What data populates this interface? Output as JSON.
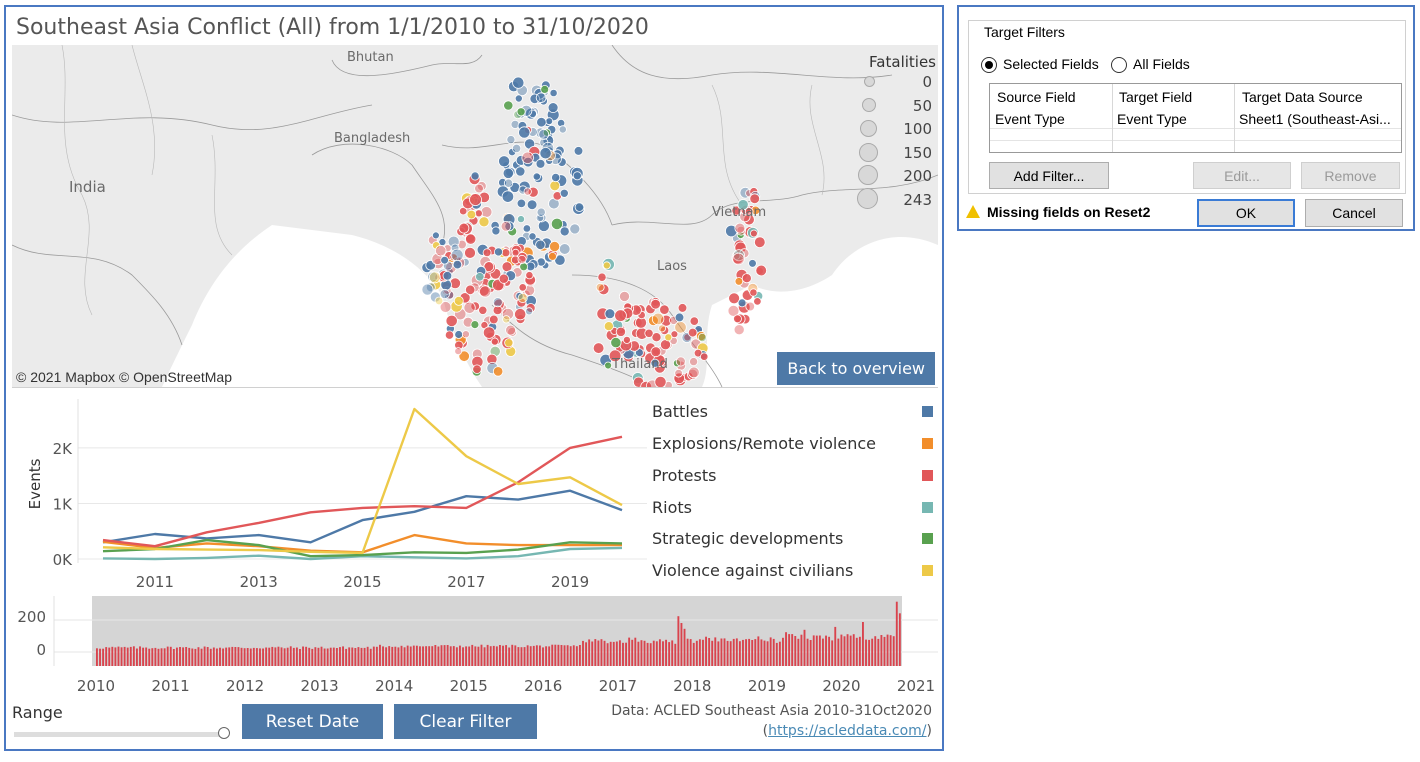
{
  "dashboard": {
    "title": "Southeast Asia Conflict (All) from 1/1/2010 to 31/10/2020",
    "map": {
      "labels": {
        "bhutan": "Bhutan",
        "bangladesh": "Bangladesh",
        "india": "India",
        "vietnam": "Vietnam",
        "laos": "Laos",
        "thailand": "Thailand"
      },
      "attribution": "© 2021 Mapbox © OpenStreetMap",
      "back_button": "Back to overview",
      "fatalities_legend": {
        "title": "Fatalities",
        "values": [
          "0",
          "50",
          "100",
          "150",
          "200",
          "243"
        ]
      }
    },
    "legend": {
      "items": [
        {
          "label": "Battles",
          "color": "#4e79a7"
        },
        {
          "label": "Explosions/Remote violence",
          "color": "#f28e2b"
        },
        {
          "label": "Protests",
          "color": "#e15759"
        },
        {
          "label": "Riots",
          "color": "#76b7b2"
        },
        {
          "label": "Strategic developments",
          "color": "#59a14f"
        },
        {
          "label": "Violence against civilians",
          "color": "#edc948"
        }
      ]
    },
    "controls": {
      "range_label": "Range",
      "reset_date": "Reset Date",
      "clear_filter": "Clear Filter"
    },
    "source": {
      "text": "Data: ACLED Southeast Asia 2010-31Oct2020",
      "open": "(",
      "link": "https://acleddata.com/",
      "close": ")"
    }
  },
  "chart_data": [
    {
      "type": "line",
      "ylabel": "Events",
      "x": [
        2010,
        2011,
        2012,
        2013,
        2014,
        2015,
        2016,
        2017,
        2018,
        2019,
        2020
      ],
      "x_ticks": [
        "2011",
        "2013",
        "2015",
        "2017",
        "2019"
      ],
      "y_ticks": [
        "0K",
        "1K",
        "2K"
      ],
      "ylim": [
        0,
        2700
      ],
      "series": [
        {
          "name": "Battles",
          "color": "#4e79a7",
          "values": [
            300,
            450,
            370,
            430,
            300,
            700,
            850,
            1130,
            1070,
            1230,
            880
          ]
        },
        {
          "name": "Explosions/Remote violence",
          "color": "#f28e2b",
          "values": [
            310,
            200,
            280,
            230,
            150,
            120,
            430,
            280,
            250,
            250,
            250
          ]
        },
        {
          "name": "Protests",
          "color": "#e15759",
          "values": [
            340,
            230,
            480,
            650,
            840,
            920,
            950,
            920,
            1380,
            2000,
            2200
          ]
        },
        {
          "name": "Riots",
          "color": "#76b7b2",
          "values": [
            10,
            0,
            20,
            60,
            0,
            50,
            30,
            10,
            50,
            180,
            200
          ]
        },
        {
          "name": "Strategic developments",
          "color": "#59a14f",
          "values": [
            140,
            180,
            340,
            250,
            50,
            70,
            120,
            110,
            170,
            300,
            280
          ]
        },
        {
          "name": "Violence against civilians",
          "color": "#edc948",
          "values": [
            210,
            180,
            170,
            160,
            130,
            110,
            2700,
            1850,
            1350,
            1470,
            970
          ]
        }
      ]
    },
    {
      "type": "bar",
      "x_ticks": [
        "2010",
        "2011",
        "2012",
        "2013",
        "2014",
        "2015",
        "2016",
        "2017",
        "2018",
        "2019",
        "2020",
        "2021"
      ],
      "y_ticks": [
        "200",
        "0"
      ],
      "ylim": [
        0,
        300
      ],
      "color": "#d9434d",
      "seed": 7
    }
  ],
  "dialog": {
    "group_title": "Target Filters",
    "radio": {
      "selected": "Selected Fields",
      "all": "All Fields"
    },
    "table": {
      "headers": [
        "Source Field",
        "Target Field",
        "Target Data Source"
      ],
      "rows": [
        [
          "Event Type",
          "Event Type",
          "Sheet1 (Southeast-Asi..."
        ]
      ]
    },
    "buttons": {
      "add": "Add Filter...",
      "edit": "Edit...",
      "remove": "Remove",
      "ok": "OK",
      "cancel": "Cancel"
    },
    "warning": "Missing fields on Reset2"
  }
}
